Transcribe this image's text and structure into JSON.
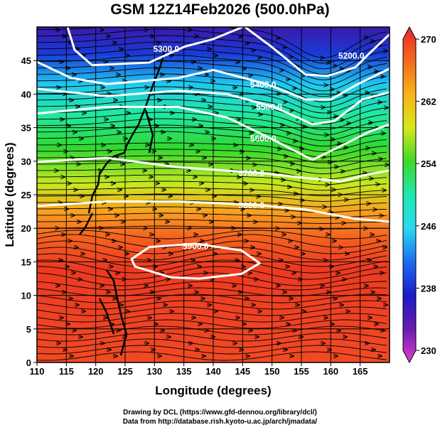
{
  "title": "GSM 12Z14Feb2026 (500.0hPa)",
  "chart_data": {
    "type": "map",
    "title": "GSM 12Z14Feb2026 (500.0hPa)",
    "xlabel": "Longitude (degrees)",
    "ylabel": "Latitude  (degrees)",
    "xlim": [
      110,
      170
    ],
    "ylim": [
      0,
      50
    ],
    "xticks": [
      "110",
      "115",
      "120",
      "125",
      "130",
      "135",
      "140",
      "145",
      "150",
      "155",
      "160",
      "165"
    ],
    "yticks": [
      "0",
      "5",
      "10",
      "15",
      "20",
      "25",
      "30",
      "35",
      "40",
      "45"
    ],
    "grid": true,
    "colorbar": {
      "min": 230,
      "max": 270,
      "ticks": [
        "270",
        "262",
        "254",
        "246",
        "238",
        "230"
      ],
      "colors": [
        "#e8262a",
        "#f46a1e",
        "#f9b21a",
        "#d8e81a",
        "#3ed82a",
        "#20e8b0",
        "#2ad8f0",
        "#1c6ef0",
        "#1a1ac8",
        "#6a1ab0",
        "#e040d0"
      ]
    },
    "contours": [
      {
        "label": "5200.0",
        "points": [
          [
            145.4,
            50
          ],
          [
            150,
            47
          ],
          [
            155.7,
            42.9
          ],
          [
            159.4,
            42.7
          ],
          [
            164.2,
            44
          ],
          [
            166.6,
            46.1
          ],
          [
            170,
            48.9
          ]
        ],
        "label_at": [
          163.5,
          45.8
        ]
      },
      {
        "label": "5300.0",
        "points": [
          [
            115.2,
            50
          ],
          [
            116.4,
            46.6
          ],
          [
            119.4,
            44.3
          ],
          [
            129.1,
            44.7
          ],
          [
            135.2,
            47.1
          ],
          [
            140,
            48.2
          ],
          [
            145,
            50
          ]
        ],
        "label_at": [
          132,
          46.8
        ]
      },
      {
        "label": "5400.0",
        "points": [
          [
            110,
            44.8
          ],
          [
            115.8,
            42.4
          ],
          [
            121.9,
            41.5
          ],
          [
            134,
            42.4
          ],
          [
            140,
            43.6
          ],
          [
            149.1,
            41.5
          ],
          [
            155.7,
            39.2
          ],
          [
            160,
            39.2
          ],
          [
            164.2,
            41.3
          ],
          [
            170,
            43.8
          ]
        ],
        "label_at": [
          148.5,
          41.5
        ]
      },
      {
        "label": "5500.0",
        "points": [
          [
            110,
            40.8
          ],
          [
            121.9,
            39.7
          ],
          [
            134,
            40.5
          ],
          [
            142.4,
            40
          ],
          [
            150.3,
            38.1
          ],
          [
            156.9,
            35.5
          ],
          [
            160.6,
            36
          ],
          [
            165.4,
            39.2
          ],
          [
            170,
            40.3
          ]
        ],
        "label_at": [
          149.5,
          38.2
        ]
      },
      {
        "label": "5600.0",
        "points": [
          [
            110,
            37.1
          ],
          [
            121.9,
            38.1
          ],
          [
            134,
            38.1
          ],
          [
            142.4,
            36.5
          ],
          [
            149.3,
            33.6
          ],
          [
            156.9,
            30.2
          ],
          [
            161.8,
            32.3
          ],
          [
            166.6,
            34.4
          ],
          [
            170,
            35.5
          ]
        ],
        "label_at": [
          148.5,
          33.5
        ]
      },
      {
        "label": "5700.0",
        "points": [
          [
            110,
            29.9
          ],
          [
            121.9,
            30.5
          ],
          [
            134,
            29.1
          ],
          [
            147.3,
            28.3
          ],
          [
            155.7,
            27.5
          ],
          [
            161.8,
            27
          ],
          [
            166.6,
            28.1
          ],
          [
            170,
            28.6
          ]
        ],
        "label_at": [
          146.5,
          28.3
        ]
      },
      {
        "label": "5800.0",
        "points": [
          [
            110,
            23.3
          ],
          [
            121.9,
            24
          ],
          [
            134,
            24
          ],
          [
            146.9,
            23.5
          ],
          [
            155.7,
            22.8
          ],
          [
            164.2,
            21.4
          ],
          [
            170,
            21
          ]
        ],
        "label_at": [
          146.5,
          23.5
        ]
      },
      {
        "label": "5900.0",
        "closed": true,
        "points": [
          [
            126.1,
            15.4
          ],
          [
            129.1,
            17.2
          ],
          [
            137,
            17.7
          ],
          [
            144.8,
            16.7
          ],
          [
            147.9,
            14.8
          ],
          [
            144.8,
            13.2
          ],
          [
            137.6,
            12.5
          ],
          [
            132.7,
            12.7
          ],
          [
            126.7,
            14.3
          ]
        ],
        "label_at": [
          137,
          17.4
        ]
      }
    ]
  },
  "credits": {
    "line1": "Drawing by DCL (https://www.gfd-dennou.org/library/dcl/)",
    "line2": "Data from http://database.rish.kyoto-u.ac.jp/arch/jmadata/"
  }
}
